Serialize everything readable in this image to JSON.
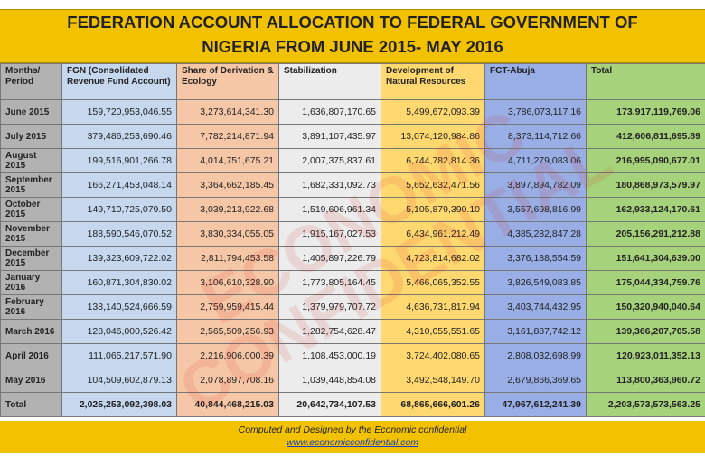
{
  "title": {
    "line1": "FEDERATION ACCOUNT  ALLOCATION TO FEDERAL GOVERNMENT OF",
    "line2": "NIGERIA FROM JUNE 2015- MAY 2016"
  },
  "table": {
    "headers": [
      "Months/ Period",
      "FGN (Consolidated Revenue Fund Account)",
      "Share of Derivation & Ecology",
      "Stabilization",
      "Development of Natural Resources",
      "FCT-Abuja",
      "Total"
    ],
    "rows": [
      [
        "June 2015",
        "159,720,953,046.55",
        "3,273,614,341.30",
        "1,636,807,170.65",
        "5,499,672,093.39",
        "3,786,073,117.16",
        "173,917,119,769.06"
      ],
      [
        "July 2015",
        "379,486,253,690.46",
        "7,782,214,871.94",
        "3,891,107,435.97",
        "13,074,120,984.86",
        "8,373,114,712.66",
        "412,606,811,695.89"
      ],
      [
        "August 2015",
        "199,516,901,266.78",
        "4,014,751,675.21",
        "2,007,375,837.61",
        "6,744,782,814.36",
        "4,711,279,083.06",
        "216,995,090,677.01"
      ],
      [
        "September 2015",
        "166,271,453,048.14",
        "3,364,662,185.45",
        "1,682,331,092.73",
        "5,652,632,471.56",
        "3,897,894,782.09",
        "180,868,973,579.97"
      ],
      [
        "October 2015",
        "149,710,725,079.50",
        "3,039,213,922.68",
        "1,519,606,961.34",
        "5,105,879,390.10",
        "3,557,698,816.99",
        "162,933,124,170.61"
      ],
      [
        "November 2015",
        "188,590,546,070.52",
        "3,830,334,055.05",
        "1,915,167,027.53",
        "6,434,961,212.49",
        "4,385,282,847.28",
        "205,156,291,212.88"
      ],
      [
        "December 2015",
        "139,323,609,722.02",
        "2,811,794,453.58",
        "1,405,897,226.79",
        "4,723,814,682.02",
        "3,376,188,554.59",
        "151,641,304,639.00"
      ],
      [
        "January 2016",
        "160,871,304,830.02",
        "3,106,610,328.90",
        "1,773,805,164.45",
        "5,466,065,352.55",
        "3,826,549,083.85",
        "175,044,334,759.76"
      ],
      [
        "February 2016",
        "138,140,524,666.59",
        "2,759,959,415.44",
        "1,379,979,707.72",
        "4,636,731,817.94",
        "3,403,744,432.95",
        "150,320,940,040.64"
      ],
      [
        "March 2016",
        "128,046,000,526.42",
        "2,565,509,256.93",
        "1,282,754,628.47",
        "4,310,055,551.65",
        "3,161,887,742.12",
        "139,366,207,705.58"
      ],
      [
        "April 2016",
        "111,065,217,571.90",
        "2,216,906,000.39",
        "1,108,453,000.19",
        "3,724,402,080.65",
        "2,808,032,698.99",
        "120,923,011,352.13"
      ],
      [
        "May 2016",
        "104,509,602,879.13",
        "2,078,897,708.16",
        "1,039,448,854.08",
        "3,492,548,149.70",
        "2,679,866,369.65",
        "113,800,363,960.72"
      ]
    ],
    "total": [
      "Total",
      "2,025,253,092,398.03",
      "40,844,468,215.03",
      "20,642,734,107.53",
      "68,865,666,601.26",
      "47,967,612,241.39",
      "2,203,573,573,563.25"
    ]
  },
  "footer": {
    "credit": "Computed and Designed by the Economic confidential",
    "url": "www.economicconfidential.com"
  },
  "watermark": "ECONOMIC CONFIDENTIAL"
}
